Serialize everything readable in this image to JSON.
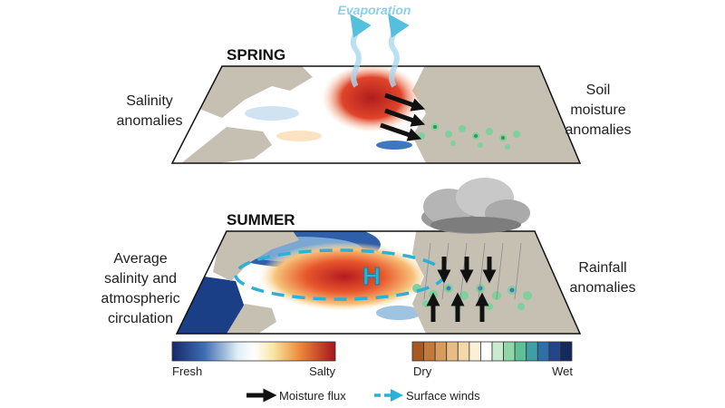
{
  "evaporation": "Evaporation",
  "spring": {
    "title": "SPRING",
    "left_label": [
      "Salinity",
      "anomalies"
    ],
    "right_label": [
      "Soil",
      "moisture",
      "anomalies"
    ]
  },
  "summer": {
    "title": "SUMMER",
    "left_label": [
      "Average",
      "salinity and",
      "atmospheric",
      "circulation"
    ],
    "right_label": [
      "Rainfall",
      "anomalies"
    ],
    "high_pressure": "H"
  },
  "salinity_scale": {
    "low": "Fresh",
    "high": "Salty"
  },
  "rainfall_scale": {
    "low": "Dry",
    "high": "Wet"
  },
  "legend": {
    "moisture_flux": "Moisture flux",
    "surface_winds": "Surface winds"
  }
}
